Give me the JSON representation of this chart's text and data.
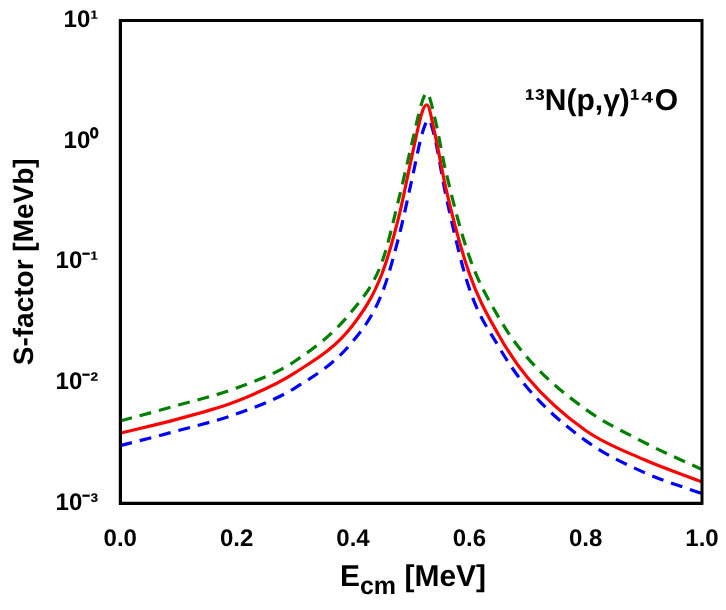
{
  "chart_data": {
    "type": "line",
    "xlabel": "E$_{cm}$ [MeV]",
    "ylabel": "S-factor [MeVb]",
    "log": "y",
    "xlim": [
      0,
      1
    ],
    "xticks": [
      {
        "value": 0,
        "label": "0.0"
      },
      0.2,
      0.4,
      0.6,
      0.8,
      {
        "value": 1,
        "label": "1.0"
      }
    ],
    "ylim": [
      0.001,
      10
    ],
    "yticks": [
      {
        "value": 0.001,
        "label": "10⁻³"
      },
      {
        "value": 0.01,
        "label": "10⁻²"
      },
      {
        "value": 0.1,
        "label": "10⁻¹"
      },
      {
        "value": 1,
        "label": "10⁰"
      },
      {
        "value": 10,
        "label": "10¹"
      }
    ],
    "grid": false,
    "legend": false,
    "marker": "none",
    "annotations": [
      "¹³N(p,γ)¹⁴O"
    ],
    "series": [
      {
        "color": "#008000",
        "line_style": "dashed",
        "x": [
          0,
          0.1,
          0.2,
          0.3,
          0.4,
          0.45,
          0.48,
          0.5,
          0.52,
          0.527,
          0.54,
          0.56,
          0.6,
          0.65,
          0.7,
          0.8,
          0.9,
          1.0
        ],
        "values": [
          0.0048,
          0.0065,
          0.009,
          0.015,
          0.04,
          0.1,
          0.35,
          0.9,
          2.2,
          2.5,
          1.6,
          0.55,
          0.11,
          0.035,
          0.016,
          0.006,
          0.0032,
          0.0019
        ]
      },
      {
        "color": "#ff0000",
        "line_style": "solid",
        "x": [
          0,
          0.1,
          0.2,
          0.3,
          0.4,
          0.45,
          0.48,
          0.5,
          0.52,
          0.527,
          0.54,
          0.56,
          0.6,
          0.65,
          0.7,
          0.8,
          0.9,
          1.0
        ],
        "values": [
          0.0038,
          0.005,
          0.007,
          0.012,
          0.03,
          0.08,
          0.25,
          0.7,
          1.8,
          2.0,
          1.2,
          0.4,
          0.08,
          0.025,
          0.011,
          0.004,
          0.0023,
          0.0015
        ]
      },
      {
        "color": "#0000ff",
        "line_style": "dashed",
        "x": [
          0,
          0.1,
          0.2,
          0.3,
          0.4,
          0.45,
          0.48,
          0.5,
          0.52,
          0.53,
          0.54,
          0.56,
          0.6,
          0.65,
          0.7,
          0.8,
          0.9,
          1.0
        ],
        "values": [
          0.003,
          0.004,
          0.0055,
          0.009,
          0.022,
          0.055,
          0.17,
          0.45,
          1.2,
          1.5,
          1.1,
          0.35,
          0.06,
          0.02,
          0.009,
          0.0033,
          0.0018,
          0.0012
        ]
      }
    ]
  }
}
